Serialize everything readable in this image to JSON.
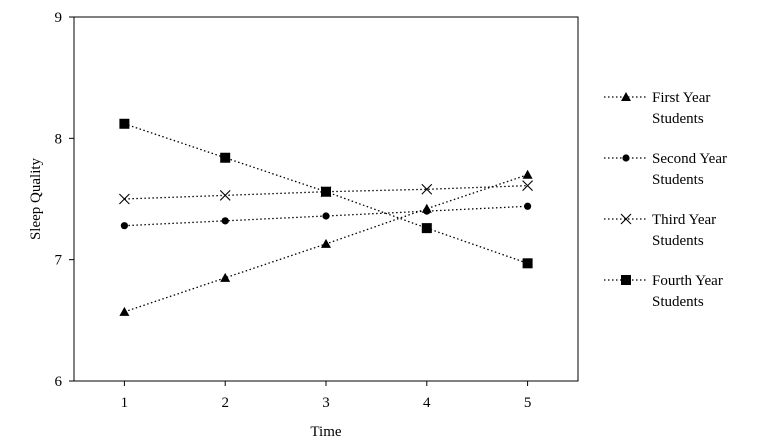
{
  "chart_data": {
    "type": "line",
    "title": "",
    "xlabel": "Time",
    "ylabel": "Sleep  Quality",
    "x": [
      1,
      2,
      3,
      4,
      5
    ],
    "xlim": [
      0.5,
      5.5
    ],
    "ylim": [
      6,
      9
    ],
    "yticks": [
      6,
      7,
      8,
      9
    ],
    "grid": false,
    "legend_position": "right",
    "series": [
      {
        "name": "First Year Students",
        "label_lines": [
          "First Year",
          "Students"
        ],
        "marker": "triangle",
        "values": [
          6.57,
          6.85,
          7.13,
          7.42,
          7.7
        ]
      },
      {
        "name": "Second Year Students",
        "label_lines": [
          "Second Year",
          "Students"
        ],
        "marker": "circle",
        "values": [
          7.28,
          7.32,
          7.36,
          7.4,
          7.44
        ]
      },
      {
        "name": "Third Year Students",
        "label_lines": [
          "Third Year",
          "Students"
        ],
        "marker": "x",
        "values": [
          7.5,
          7.53,
          7.56,
          7.58,
          7.61
        ]
      },
      {
        "name": "Fourth Year Students",
        "label_lines": [
          "Fourth Year",
          "Students"
        ],
        "marker": "square",
        "values": [
          8.12,
          7.84,
          7.56,
          7.26,
          6.97
        ]
      }
    ],
    "line_color": "#000000"
  }
}
